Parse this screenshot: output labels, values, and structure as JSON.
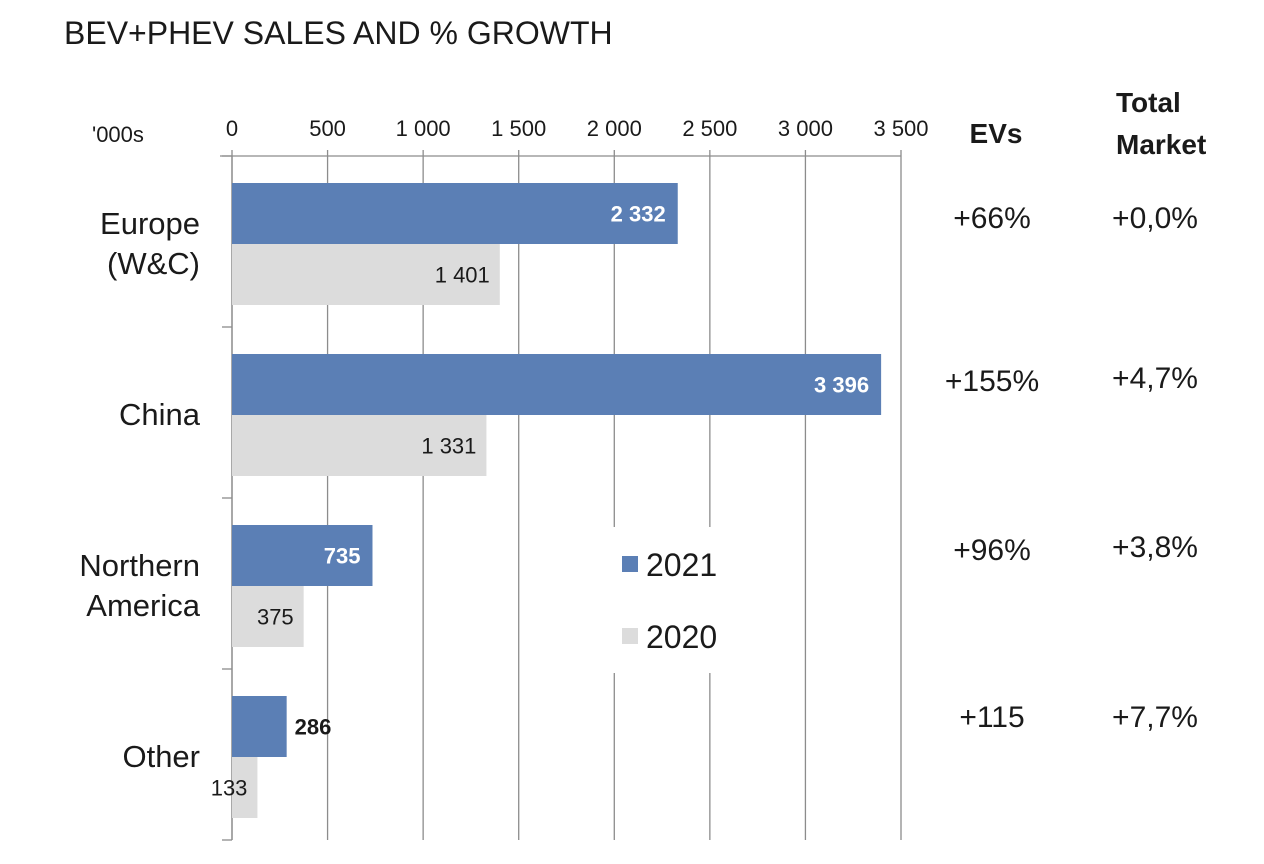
{
  "chart_data": {
    "type": "bar",
    "orientation": "horizontal",
    "title": "BEV+PHEV SALES AND % GROWTH",
    "unit_label": "'000s",
    "xlim": [
      0,
      3500
    ],
    "ticks": [
      0,
      500,
      1000,
      1500,
      2000,
      2500,
      3000,
      3500
    ],
    "tick_labels": [
      "0",
      "500",
      "1 000",
      "1 500",
      "2 000",
      "2 500",
      "3 000",
      "3 500"
    ],
    "grid": true,
    "legend_position": "center",
    "categories": [
      {
        "lines": [
          "Europe",
          "(W&C)"
        ]
      },
      {
        "lines": [
          "China"
        ]
      },
      {
        "lines": [
          "Northern",
          "America"
        ]
      },
      {
        "lines": [
          "Other"
        ]
      }
    ],
    "series": [
      {
        "name": "2021",
        "color": "#5b7fb5",
        "values": [
          2332,
          3396,
          735,
          286
        ],
        "labels": [
          "2 332",
          "3 396",
          "735",
          "286"
        ]
      },
      {
        "name": "2020",
        "color": "#dcdcdc",
        "values": [
          1401,
          1331,
          375,
          133
        ],
        "labels": [
          "1 401",
          "1 331",
          "375",
          "133"
        ]
      }
    ],
    "columns": {
      "evs_header": [
        "EVs"
      ],
      "total_header": [
        "Total",
        "Market"
      ],
      "evs_growth": [
        "+66%",
        "+155%",
        "+96%",
        "+115"
      ],
      "total_growth": [
        "+0,0%",
        "+4,7%",
        "+3,8%",
        "+7,7%"
      ]
    }
  }
}
